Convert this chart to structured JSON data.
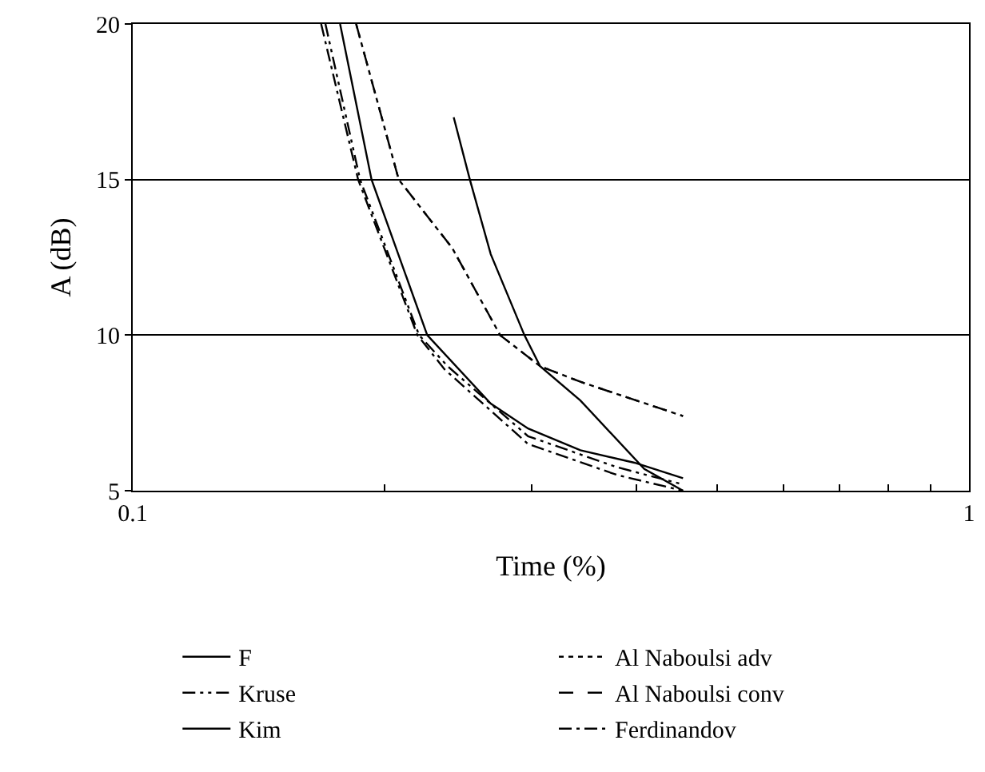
{
  "chart_data": {
    "type": "line",
    "xlabel": "Time (%)",
    "ylabel": "A (dB)",
    "log": "x",
    "grid": "y",
    "legend": "bottom",
    "marker": "none",
    "xlim": [
      0.1,
      1
    ],
    "xticks": [
      0.1,
      {
        "value": 0.2,
        "label": null
      },
      {
        "value": 0.3,
        "label": null
      },
      {
        "value": 0.4,
        "label": null
      },
      {
        "value": 0.5,
        "label": null
      },
      {
        "value": 0.6,
        "label": null
      },
      {
        "value": 0.7,
        "label": null
      },
      {
        "value": 0.8,
        "label": null
      },
      {
        "value": 0.9,
        "label": null
      },
      1
    ],
    "ylim": [
      5,
      20
    ],
    "yticks": [
      5,
      10,
      15,
      20
    ],
    "series": [
      {
        "name": "F",
        "color": "#000000",
        "line_style": "solid",
        "x": [
          0.242,
          0.253,
          0.268,
          0.294,
          0.307,
          0.343,
          0.409,
          0.455
        ],
        "values": [
          17,
          15,
          12.6,
          10,
          9,
          7.9,
          5.7,
          5
        ]
      },
      {
        "name": "Kruse",
        "color": "#000000",
        "line_style": "dashdotdot",
        "x": [
          0.17,
          0.187,
          0.22,
          0.238,
          0.297,
          0.38,
          0.455
        ],
        "values": [
          20,
          15,
          10,
          9,
          6.75,
          5.75,
          5.2
        ]
      },
      {
        "name": "Kim",
        "color": "#000000",
        "line_style": "solid",
        "x": [
          0.177,
          0.193,
          0.225,
          0.268,
          0.297,
          0.343,
          0.398,
          0.455
        ],
        "values": [
          20,
          15,
          10,
          7.8,
          7,
          6.3,
          5.9,
          5.4
        ]
      },
      {
        "name": "Al Naboulsi adv",
        "color": "#000000",
        "line_style": "dotted",
        "x": [
          0.185,
          0.208,
          0.241,
          0.275,
          0.307,
          0.343,
          0.455
        ],
        "values": [
          20,
          15,
          12.8,
          10,
          9,
          8.5,
          7.4
        ]
      },
      {
        "name": "Al Naboulsi conv",
        "color": "#000000",
        "line_style": "dashed",
        "x": [
          0.185,
          0.208,
          0.241,
          0.275,
          0.307,
          0.343,
          0.455
        ],
        "values": [
          20,
          15,
          12.8,
          10,
          9,
          8.5,
          7.4
        ]
      },
      {
        "name": "Ferdinandov",
        "color": "#000000",
        "line_style": "dashdot",
        "x": [
          0.168,
          0.186,
          0.219,
          0.236,
          0.297,
          0.38,
          0.455
        ],
        "values": [
          20,
          15,
          10,
          8.9,
          6.5,
          5.5,
          5
        ]
      }
    ]
  }
}
